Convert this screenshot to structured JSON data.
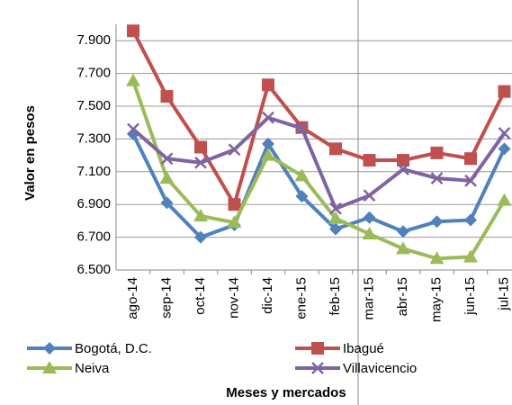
{
  "chart_data": {
    "type": "line",
    "x_label": "Meses y mercados",
    "y_label": "Valor en pesos",
    "categories": [
      "ago-14",
      "sep-14",
      "oct-14",
      "nov-14",
      "dic-14",
      "ene-15",
      "feb-15",
      "mar-15",
      "abr-15",
      "may-15",
      "jun-15",
      "jul-15"
    ],
    "series": [
      {
        "name": "Bogotá, D.C.",
        "color": "#4F81BD",
        "marker": "diamond",
        "values": [
          7330,
          6910,
          6700,
          6775,
          7270,
          6950,
          6750,
          6820,
          6735,
          6795,
          6805,
          7240
        ]
      },
      {
        "name": "Ibagué",
        "color": "#C0504D",
        "marker": "square",
        "values": [
          7960,
          7560,
          7250,
          6900,
          7630,
          7370,
          7240,
          7170,
          7170,
          7215,
          7180,
          7590
        ]
      },
      {
        "name": "Neiva",
        "color": "#9BBB59",
        "marker": "triangle",
        "values": [
          7655,
          7060,
          6830,
          6790,
          7200,
          7075,
          6815,
          6720,
          6630,
          6570,
          6580,
          6925
        ]
      },
      {
        "name": "Villavicencio",
        "color": "#8064A2",
        "marker": "x",
        "values": [
          7360,
          7180,
          7155,
          7235,
          7430,
          7365,
          6875,
          6955,
          7115,
          7060,
          7045,
          7335
        ]
      }
    ],
    "ylim": [
      6500,
      8000
    ],
    "yticks": [
      {
        "value": 6500,
        "label": "6.500"
      },
      {
        "value": 6700,
        "label": "6.700"
      },
      {
        "value": 6900,
        "label": "6.900"
      },
      {
        "value": 7100,
        "label": "7.100"
      },
      {
        "value": 7300,
        "label": "7.300"
      },
      {
        "value": 7500,
        "label": "7.500"
      },
      {
        "value": 7700,
        "label": "7.700"
      },
      {
        "value": 7900,
        "label": "7.900"
      }
    ],
    "grid": true
  }
}
